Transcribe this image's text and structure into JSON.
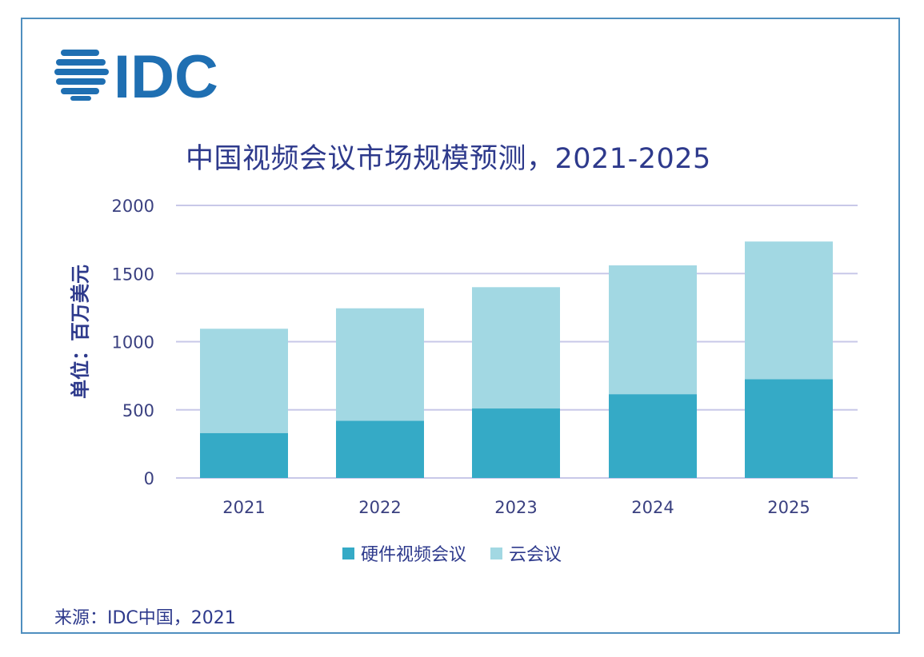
{
  "logo": {
    "text": "IDC",
    "icon": "globe-stripes-icon",
    "color": "#1f6fb2"
  },
  "colors": {
    "frame": "#4f8fbf",
    "title": "#2e3a8c",
    "hardware": "#35aac6",
    "cloud": "#a2d8e3",
    "grid": "#c8c8e8"
  },
  "source": "来源：IDC中国，2021",
  "chart_data": {
    "type": "bar",
    "stacked": true,
    "title": "中国视频会议市场规模预测，2021-2025",
    "xlabel": "",
    "ylabel": "单位：百万美元",
    "categories": [
      "2021",
      "2022",
      "2023",
      "2024",
      "2025"
    ],
    "series": [
      {
        "name": "硬件视频会议",
        "values": [
          330,
          420,
          510,
          615,
          725
        ]
      },
      {
        "name": "云会议",
        "values": [
          765,
          825,
          890,
          945,
          1010
        ]
      }
    ],
    "ylim": [
      0,
      2000
    ],
    "yticks": [
      "0",
      "500",
      "1000",
      "1500",
      "2000"
    ],
    "grid": true,
    "legend_position": "bottom-center"
  }
}
